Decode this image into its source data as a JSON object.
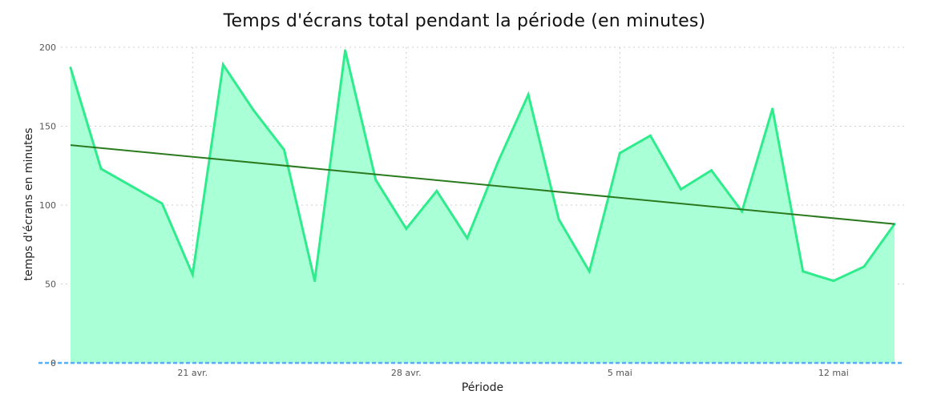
{
  "chart_data": {
    "type": "area",
    "title": "Temps d'écrans total pendant la période (en minutes)",
    "xlabel": "Période",
    "ylabel": "temps d'écrans en minutes",
    "x": [
      "2024-04-17",
      "2024-04-18",
      "2024-04-19",
      "2024-04-20",
      "2024-04-21",
      "2024-04-22",
      "2024-04-23",
      "2024-04-24",
      "2024-04-25",
      "2024-04-26",
      "2024-04-27",
      "2024-04-28",
      "2024-04-29",
      "2024-04-30",
      "2024-05-01",
      "2024-05-02",
      "2024-05-03",
      "2024-05-04",
      "2024-05-05",
      "2024-05-06",
      "2024-05-07",
      "2024-05-08",
      "2024-05-09",
      "2024-05-10",
      "2024-05-11",
      "2024-05-12",
      "2024-05-13",
      "2024-05-14"
    ],
    "x_ticks": [
      {
        "date": "2024-04-21",
        "label": "21 avr."
      },
      {
        "date": "2024-04-28",
        "label": "28 avr."
      },
      {
        "date": "2024-05-05",
        "label": "5 mai"
      },
      {
        "date": "2024-05-12",
        "label": "12 mai"
      }
    ],
    "series": [
      {
        "values": [
          187,
          123,
          112,
          101,
          56,
          189,
          160,
          135,
          52,
          198,
          116,
          85,
          109,
          79,
          127,
          170,
          91,
          58,
          133,
          144,
          110,
          122,
          96,
          161,
          58,
          52,
          61,
          88
        ],
        "color": "#2EEB8C",
        "fill": "#A9FFD6"
      }
    ],
    "trendline": {
      "start": 138,
      "end": 88,
      "color": "#2B7A1F"
    },
    "ylim": [
      0,
      200
    ],
    "y_ticks": [
      0,
      50,
      100,
      150,
      200
    ],
    "grid": true,
    "baseline_color": "#5DADEC"
  }
}
